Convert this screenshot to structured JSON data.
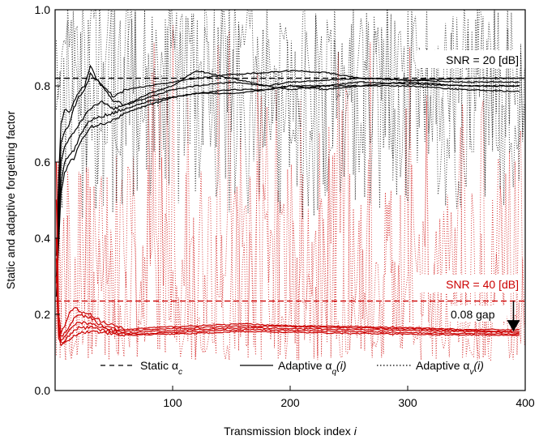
{
  "chart_data": {
    "type": "line",
    "xlabel": "Transmission block index i",
    "xlabel_main": "Transmission block index ",
    "xlabel_var": "i",
    "ylabel": "Static and adaptive forgetting factor",
    "xlim": [
      0,
      400
    ],
    "ylim": [
      0.0,
      1.0
    ],
    "xticks": [
      100,
      200,
      300,
      400
    ],
    "yticks": [
      0.0,
      0.2,
      0.4,
      0.6,
      0.8,
      1.0
    ],
    "ytick_labels": [
      "0.0",
      "0.2",
      "0.4",
      "0.6",
      "0.8",
      "1.0"
    ],
    "grid": false,
    "legend": {
      "placement": "bottom",
      "entries": [
        {
          "label": "Static α",
          "sub": "c",
          "suffix": "",
          "style": "dashed"
        },
        {
          "label": "Adaptive α",
          "sub": "q",
          "suffix": "(i)",
          "style": "solid"
        },
        {
          "label": "Adaptive α",
          "sub": "v",
          "suffix": "(i)",
          "style": "dotted"
        }
      ]
    },
    "annotations": {
      "snr20": "SNR = 20 [dB]",
      "snr40": "SNR = 40 [dB]",
      "gap": "0.08 gap",
      "gap_at_x": 390,
      "gap_from_y": 0.235,
      "gap_to_y": 0.155
    },
    "colors": {
      "snr20": "#000000",
      "snr40": "#cc0000"
    },
    "groups": [
      {
        "snr": "SNR = 20 [dB]",
        "color": "#000000",
        "static_alpha": 0.82,
        "adaptive_q": [
          {
            "x": [
              1,
              3,
              5,
              8,
              12,
              16,
              20,
              25,
              30,
              35,
              40,
              50,
              60,
              80,
              100,
              120,
              150,
              180,
              200,
              230,
              260,
              300,
              350,
              395
            ],
            "y": [
              0.35,
              0.55,
              0.7,
              0.74,
              0.73,
              0.76,
              0.78,
              0.8,
              0.855,
              0.82,
              0.8,
              0.77,
              0.79,
              0.8,
              0.81,
              0.82,
              0.83,
              0.835,
              0.84,
              0.835,
              0.82,
              0.815,
              0.81,
              0.81
            ]
          },
          {
            "x": [
              1,
              3,
              5,
              8,
              12,
              16,
              20,
              25,
              30,
              40,
              50,
              60,
              80,
              100,
              120,
              150,
              180,
              200,
              230,
              260,
              300,
              350,
              395
            ],
            "y": [
              0.3,
              0.5,
              0.65,
              0.68,
              0.7,
              0.74,
              0.77,
              0.79,
              0.83,
              0.8,
              0.76,
              0.75,
              0.78,
              0.8,
              0.84,
              0.82,
              0.8,
              0.81,
              0.815,
              0.82,
              0.815,
              0.82,
              0.82
            ]
          },
          {
            "x": [
              1,
              3,
              5,
              8,
              12,
              16,
              20,
              25,
              30,
              40,
              50,
              60,
              80,
              100,
              120,
              150,
              180,
              200,
              230,
              260,
              300,
              350,
              395
            ],
            "y": [
              0.28,
              0.45,
              0.6,
              0.64,
              0.66,
              0.68,
              0.7,
              0.72,
              0.74,
              0.76,
              0.74,
              0.75,
              0.77,
              0.79,
              0.8,
              0.81,
              0.8,
              0.79,
              0.8,
              0.8,
              0.81,
              0.8,
              0.8
            ]
          },
          {
            "x": [
              1,
              3,
              5,
              8,
              12,
              16,
              20,
              25,
              30,
              40,
              50,
              60,
              80,
              100,
              120,
              150,
              180,
              200,
              230,
              260,
              300,
              350,
              395
            ],
            "y": [
              0.25,
              0.4,
              0.55,
              0.6,
              0.62,
              0.63,
              0.66,
              0.69,
              0.71,
              0.72,
              0.73,
              0.74,
              0.76,
              0.77,
              0.78,
              0.79,
              0.79,
              0.8,
              0.8,
              0.81,
              0.805,
              0.8,
              0.8
            ]
          },
          {
            "x": [
              1,
              3,
              5,
              8,
              12,
              16,
              20,
              25,
              30,
              40,
              50,
              60,
              80,
              100,
              120,
              150,
              180,
              200,
              230,
              260,
              300,
              350,
              395
            ],
            "y": [
              0.25,
              0.38,
              0.52,
              0.57,
              0.6,
              0.61,
              0.64,
              0.67,
              0.69,
              0.7,
              0.71,
              0.73,
              0.75,
              0.77,
              0.78,
              0.78,
              0.79,
              0.8,
              0.79,
              0.8,
              0.8,
              0.79,
              0.785
            ]
          }
        ]
      },
      {
        "snr": "SNR = 40 [dB]",
        "color": "#cc0000",
        "static_alpha": 0.235,
        "adaptive_q": [
          {
            "x": [
              1,
              3,
              5,
              8,
              12,
              16,
              20,
              30,
              40,
              60,
              80,
              120,
              160,
              200,
              250,
              300,
              350,
              395
            ],
            "y": [
              0.6,
              0.2,
              0.15,
              0.17,
              0.2,
              0.22,
              0.21,
              0.2,
              0.18,
              0.16,
              0.165,
              0.17,
              0.175,
              0.17,
              0.168,
              0.165,
              0.16,
              0.16
            ]
          },
          {
            "x": [
              1,
              3,
              5,
              8,
              12,
              16,
              20,
              30,
              40,
              60,
              80,
              120,
              160,
              200,
              250,
              300,
              350,
              395
            ],
            "y": [
              0.5,
              0.18,
              0.14,
              0.15,
              0.17,
              0.19,
              0.2,
              0.19,
              0.17,
              0.155,
              0.16,
              0.165,
              0.17,
              0.168,
              0.165,
              0.162,
              0.158,
              0.155
            ]
          },
          {
            "x": [
              1,
              3,
              5,
              8,
              12,
              16,
              20,
              30,
              40,
              60,
              80,
              120,
              160,
              200,
              250,
              300,
              350,
              395
            ],
            "y": [
              0.4,
              0.16,
              0.13,
              0.14,
              0.155,
              0.17,
              0.18,
              0.175,
              0.165,
              0.15,
              0.155,
              0.16,
              0.165,
              0.163,
              0.16,
              0.158,
              0.155,
              0.152
            ]
          },
          {
            "x": [
              1,
              3,
              5,
              8,
              12,
              16,
              20,
              30,
              40,
              60,
              80,
              120,
              160,
              200,
              250,
              300,
              350,
              395
            ],
            "y": [
              0.35,
              0.15,
              0.125,
              0.13,
              0.145,
              0.155,
              0.165,
              0.165,
              0.158,
              0.148,
              0.15,
              0.155,
              0.16,
              0.158,
              0.155,
              0.152,
              0.15,
              0.148
            ]
          },
          {
            "x": [
              1,
              3,
              5,
              8,
              12,
              16,
              20,
              30,
              40,
              60,
              80,
              120,
              160,
              200,
              250,
              300,
              350,
              395
            ],
            "y": [
              0.3,
              0.14,
              0.12,
              0.125,
              0.135,
              0.145,
              0.15,
              0.155,
              0.152,
              0.145,
              0.147,
              0.15,
              0.155,
              0.153,
              0.15,
              0.148,
              0.146,
              0.145
            ]
          }
        ]
      }
    ]
  }
}
